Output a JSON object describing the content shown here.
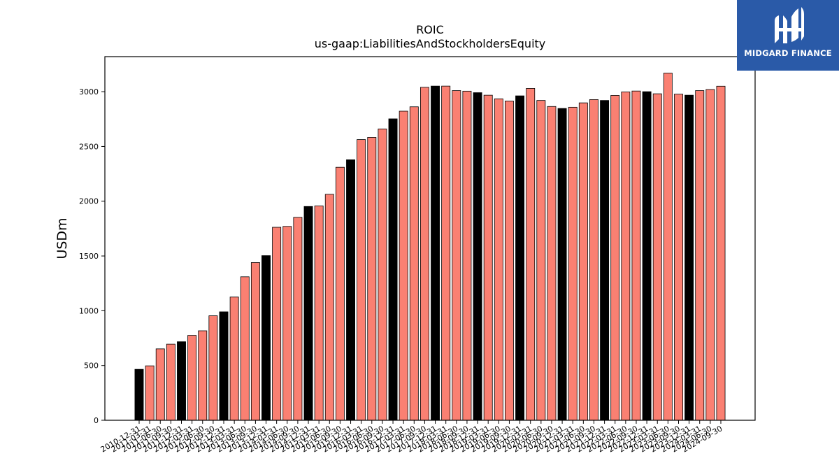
{
  "chart_data": {
    "type": "bar",
    "title": "ROIC",
    "subtitle": "us-gaap:LiabilitiesAndStockholdersEquity",
    "xlabel": "",
    "ylabel": "USDm",
    "ylim": [
      0,
      3320
    ],
    "yticks": [
      0,
      500,
      1000,
      1500,
      2000,
      2500,
      3000
    ],
    "grid": false,
    "colors": {
      "q4": "#000000",
      "other": "#fa8072",
      "edge": "#000000"
    },
    "categories": [
      "2010-12-31",
      "2011-03-31",
      "2011-06-30",
      "2011-09-30",
      "2011-12-31",
      "2012-03-31",
      "2012-06-30",
      "2012-09-30",
      "2012-12-31",
      "2013-03-31",
      "2013-06-30",
      "2013-09-30",
      "2013-12-31",
      "2014-03-31",
      "2014-06-30",
      "2014-09-30",
      "2014-12-31",
      "2015-03-31",
      "2015-06-30",
      "2015-09-30",
      "2015-12-31",
      "2016-03-31",
      "2016-06-30",
      "2016-09-30",
      "2016-12-31",
      "2017-03-31",
      "2017-06-30",
      "2017-09-30",
      "2017-12-31",
      "2018-03-31",
      "2018-06-30",
      "2018-09-30",
      "2018-12-31",
      "2019-03-31",
      "2019-06-30",
      "2019-09-30",
      "2019-12-31",
      "2020-03-31",
      "2020-06-30",
      "2020-09-30",
      "2020-12-31",
      "2021-03-31",
      "2021-06-30",
      "2021-09-30",
      "2021-12-31",
      "2022-03-31",
      "2022-06-30",
      "2022-09-30",
      "2022-12-31",
      "2023-03-31",
      "2023-06-30",
      "2023-09-30",
      "2023-12-31",
      "2024-03-31",
      "2024-06-30",
      "2024-09-30"
    ],
    "values": [
      465,
      497,
      652,
      695,
      717,
      775,
      817,
      954,
      990,
      1125,
      1310,
      1440,
      1503,
      1762,
      1770,
      1853,
      1952,
      1957,
      2063,
      2310,
      2378,
      2563,
      2583,
      2660,
      2752,
      2822,
      2862,
      3040,
      3051,
      3051,
      3010,
      3005,
      2991,
      2968,
      2935,
      2915,
      2962,
      3030,
      2920,
      2865,
      2847,
      2858,
      2898,
      2928,
      2920,
      2966,
      2998,
      3006,
      3000,
      2981,
      3170,
      2978,
      2968,
      3010,
      3020,
      3050
    ]
  },
  "logo": {
    "text": "MIDGARD FINANCE",
    "icon": "midgard-logo-icon"
  }
}
